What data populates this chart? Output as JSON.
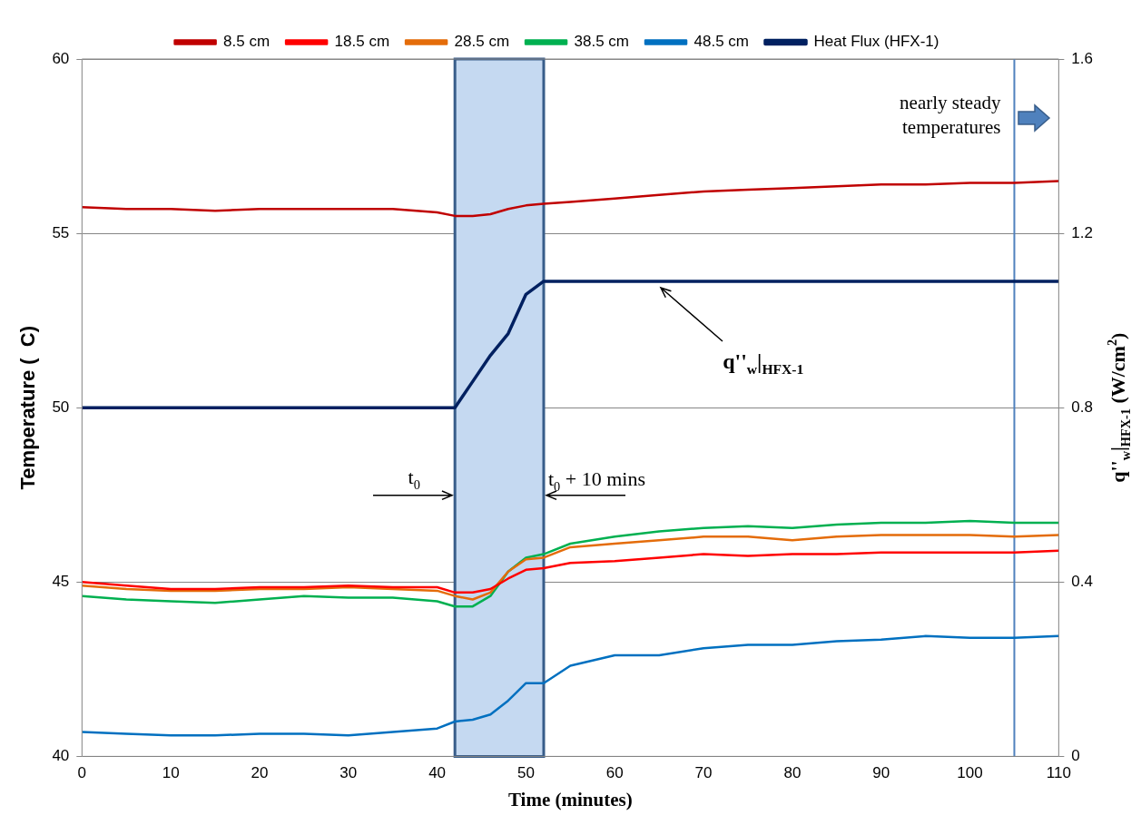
{
  "chart_data": {
    "type": "line",
    "xlabel": "Time (minutes)",
    "ylabel": "Temperature (  C)",
    "y2label": "q''$_{w}$|$_{HFX-1}$ (W/cm$^{2}$)",
    "x": [
      0,
      5,
      10,
      15,
      20,
      25,
      30,
      35,
      40,
      42,
      44,
      46,
      48,
      50,
      52,
      55,
      60,
      65,
      70,
      75,
      80,
      85,
      90,
      95,
      100,
      105,
      110
    ],
    "series": [
      {
        "name": "8.5 cm",
        "color": "#c00000",
        "values": [
          55.75,
          55.7,
          55.7,
          55.65,
          55.7,
          55.7,
          55.7,
          55.7,
          55.6,
          55.5,
          55.5,
          55.55,
          55.7,
          55.8,
          55.85,
          55.9,
          56.0,
          56.1,
          56.2,
          56.25,
          56.3,
          56.35,
          56.4,
          56.4,
          56.45,
          56.45,
          56.5
        ]
      },
      {
        "name": "18.5 cm",
        "color": "#ff0000",
        "values": [
          45.0,
          44.9,
          44.8,
          44.8,
          44.85,
          44.85,
          44.9,
          44.85,
          44.85,
          44.7,
          44.7,
          44.8,
          45.1,
          45.35,
          45.4,
          45.55,
          45.6,
          45.7,
          45.8,
          45.75,
          45.8,
          45.8,
          45.85,
          45.85,
          45.85,
          45.85,
          45.9
        ]
      },
      {
        "name": "28.5 cm",
        "color": "#e46c0a",
        "values": [
          44.9,
          44.8,
          44.75,
          44.75,
          44.8,
          44.8,
          44.85,
          44.8,
          44.75,
          44.6,
          44.5,
          44.7,
          45.3,
          45.65,
          45.7,
          46.0,
          46.1,
          46.2,
          46.3,
          46.3,
          46.2,
          46.3,
          46.35,
          46.35,
          46.35,
          46.3,
          46.35
        ]
      },
      {
        "name": "38.5 cm",
        "color": "#00b050",
        "values": [
          44.6,
          44.5,
          44.45,
          44.4,
          44.5,
          44.6,
          44.55,
          44.55,
          44.45,
          44.3,
          44.3,
          44.6,
          45.3,
          45.7,
          45.8,
          46.1,
          46.3,
          46.45,
          46.55,
          46.6,
          46.55,
          46.65,
          46.7,
          46.7,
          46.75,
          46.7,
          46.7
        ]
      },
      {
        "name": "48.5 cm",
        "color": "#0070c0",
        "values": [
          40.7,
          40.65,
          40.6,
          40.6,
          40.65,
          40.65,
          40.6,
          40.7,
          40.8,
          41.0,
          41.05,
          41.2,
          41.6,
          42.1,
          42.1,
          42.6,
          42.9,
          42.9,
          43.1,
          43.2,
          43.2,
          43.3,
          43.35,
          43.45,
          43.4,
          43.4,
          43.45
        ]
      },
      {
        "name": "Heat Flux (HFX-1)",
        "color": "#002060",
        "axis": "y2",
        "values": [
          0.8,
          0.8,
          0.8,
          0.8,
          0.8,
          0.8,
          0.8,
          0.8,
          0.8,
          0.8,
          0.86,
          0.92,
          0.97,
          1.06,
          1.09,
          1.09,
          1.09,
          1.09,
          1.09,
          1.09,
          1.09,
          1.09,
          1.09,
          1.09,
          1.09,
          1.09,
          1.09
        ]
      }
    ],
    "xlim": [
      0,
      110
    ],
    "xticks": [
      0,
      10,
      20,
      30,
      40,
      50,
      60,
      70,
      80,
      90,
      100,
      110
    ],
    "ylim": [
      40,
      60
    ],
    "yticks": [
      40,
      45,
      50,
      55,
      60
    ],
    "y2lim": [
      0,
      1.6
    ],
    "y2ticks": [
      0,
      0.4,
      0.8,
      1.2,
      1.6
    ],
    "grid": "y",
    "legend": "top",
    "marker": "none",
    "line_style": "solid",
    "bands": [
      {
        "axis": "x",
        "from": 42,
        "to": 52,
        "color": "#c5d9f1"
      }
    ],
    "ref_lines": [
      {
        "axis": "x",
        "value": 105,
        "label": "nearly steady temperatures",
        "color": "#4f81bd"
      }
    ],
    "annotations": [
      {
        "text": "t$_{0}$",
        "x": 42,
        "y": 47.5
      },
      {
        "text": "t$_{0}$ + 10 mins",
        "x": 52,
        "y": 47.5
      },
      {
        "text": "q''$_{w}$|$_{HFX-1}$",
        "x": 65,
        "y": 53.6
      }
    ]
  }
}
